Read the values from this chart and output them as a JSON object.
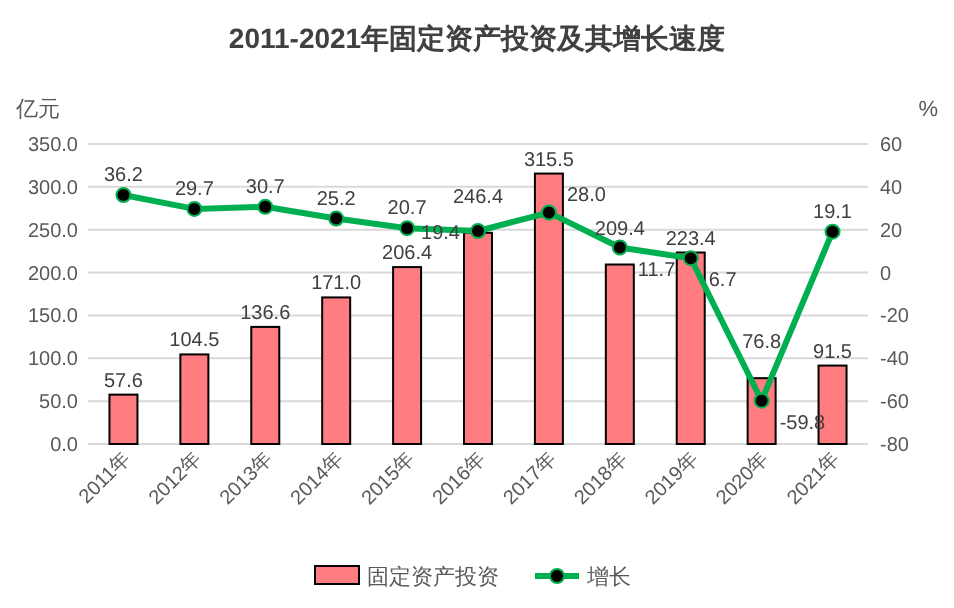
{
  "chart_data": {
    "type": "bar",
    "title": "2011-2021年固定资产投资及其增长速度",
    "ylabel": "亿元",
    "y2label": "%",
    "categories": [
      "2011年",
      "2012年",
      "2013年",
      "2014年",
      "2015年",
      "2016年",
      "2017年",
      "2018年",
      "2019年",
      "2020年",
      "2021年"
    ],
    "series": [
      {
        "name": "固定资产投资",
        "color": "#ff7c80",
        "values": [
          57.6,
          104.5,
          136.6,
          171.0,
          206.4,
          246.4,
          315.5,
          209.4,
          223.4,
          76.8,
          91.5
        ],
        "value_labels": [
          "57.6",
          "104.5",
          "136.6",
          "171.0",
          "206.4",
          "246.4",
          "315.5",
          "209.4",
          "223.4",
          "76.8",
          "91.5"
        ]
      },
      {
        "name": "增长",
        "type": "line",
        "axis": "y2",
        "color": "#00b050",
        "marker": "circle",
        "values": [
          36.2,
          29.7,
          30.7,
          25.2,
          20.7,
          19.4,
          28.0,
          11.7,
          6.7,
          -59.8,
          19.1
        ],
        "value_labels": [
          "36.2",
          "29.7",
          "30.7",
          "25.2",
          "20.7",
          "19.4",
          "28.0",
          "11.7",
          "6.7",
          "-59.8",
          "19.1"
        ]
      }
    ],
    "ylim": [
      0,
      350
    ],
    "yticks": [
      {
        "value": 0,
        "label": "0.0"
      },
      {
        "value": 50,
        "label": "50.0"
      },
      {
        "value": 100,
        "label": "100.0"
      },
      {
        "value": 150,
        "label": "150.0"
      },
      {
        "value": 200,
        "label": "200.0"
      },
      {
        "value": 250,
        "label": "250.0"
      },
      {
        "value": 300,
        "label": "300.0"
      },
      {
        "value": 350,
        "label": "350.0"
      }
    ],
    "y2lim": [
      -80,
      60
    ],
    "y2ticks": [
      -80,
      -60,
      -40,
      -20,
      0,
      20,
      40,
      60
    ],
    "grid": "y",
    "legend": "bottom"
  }
}
